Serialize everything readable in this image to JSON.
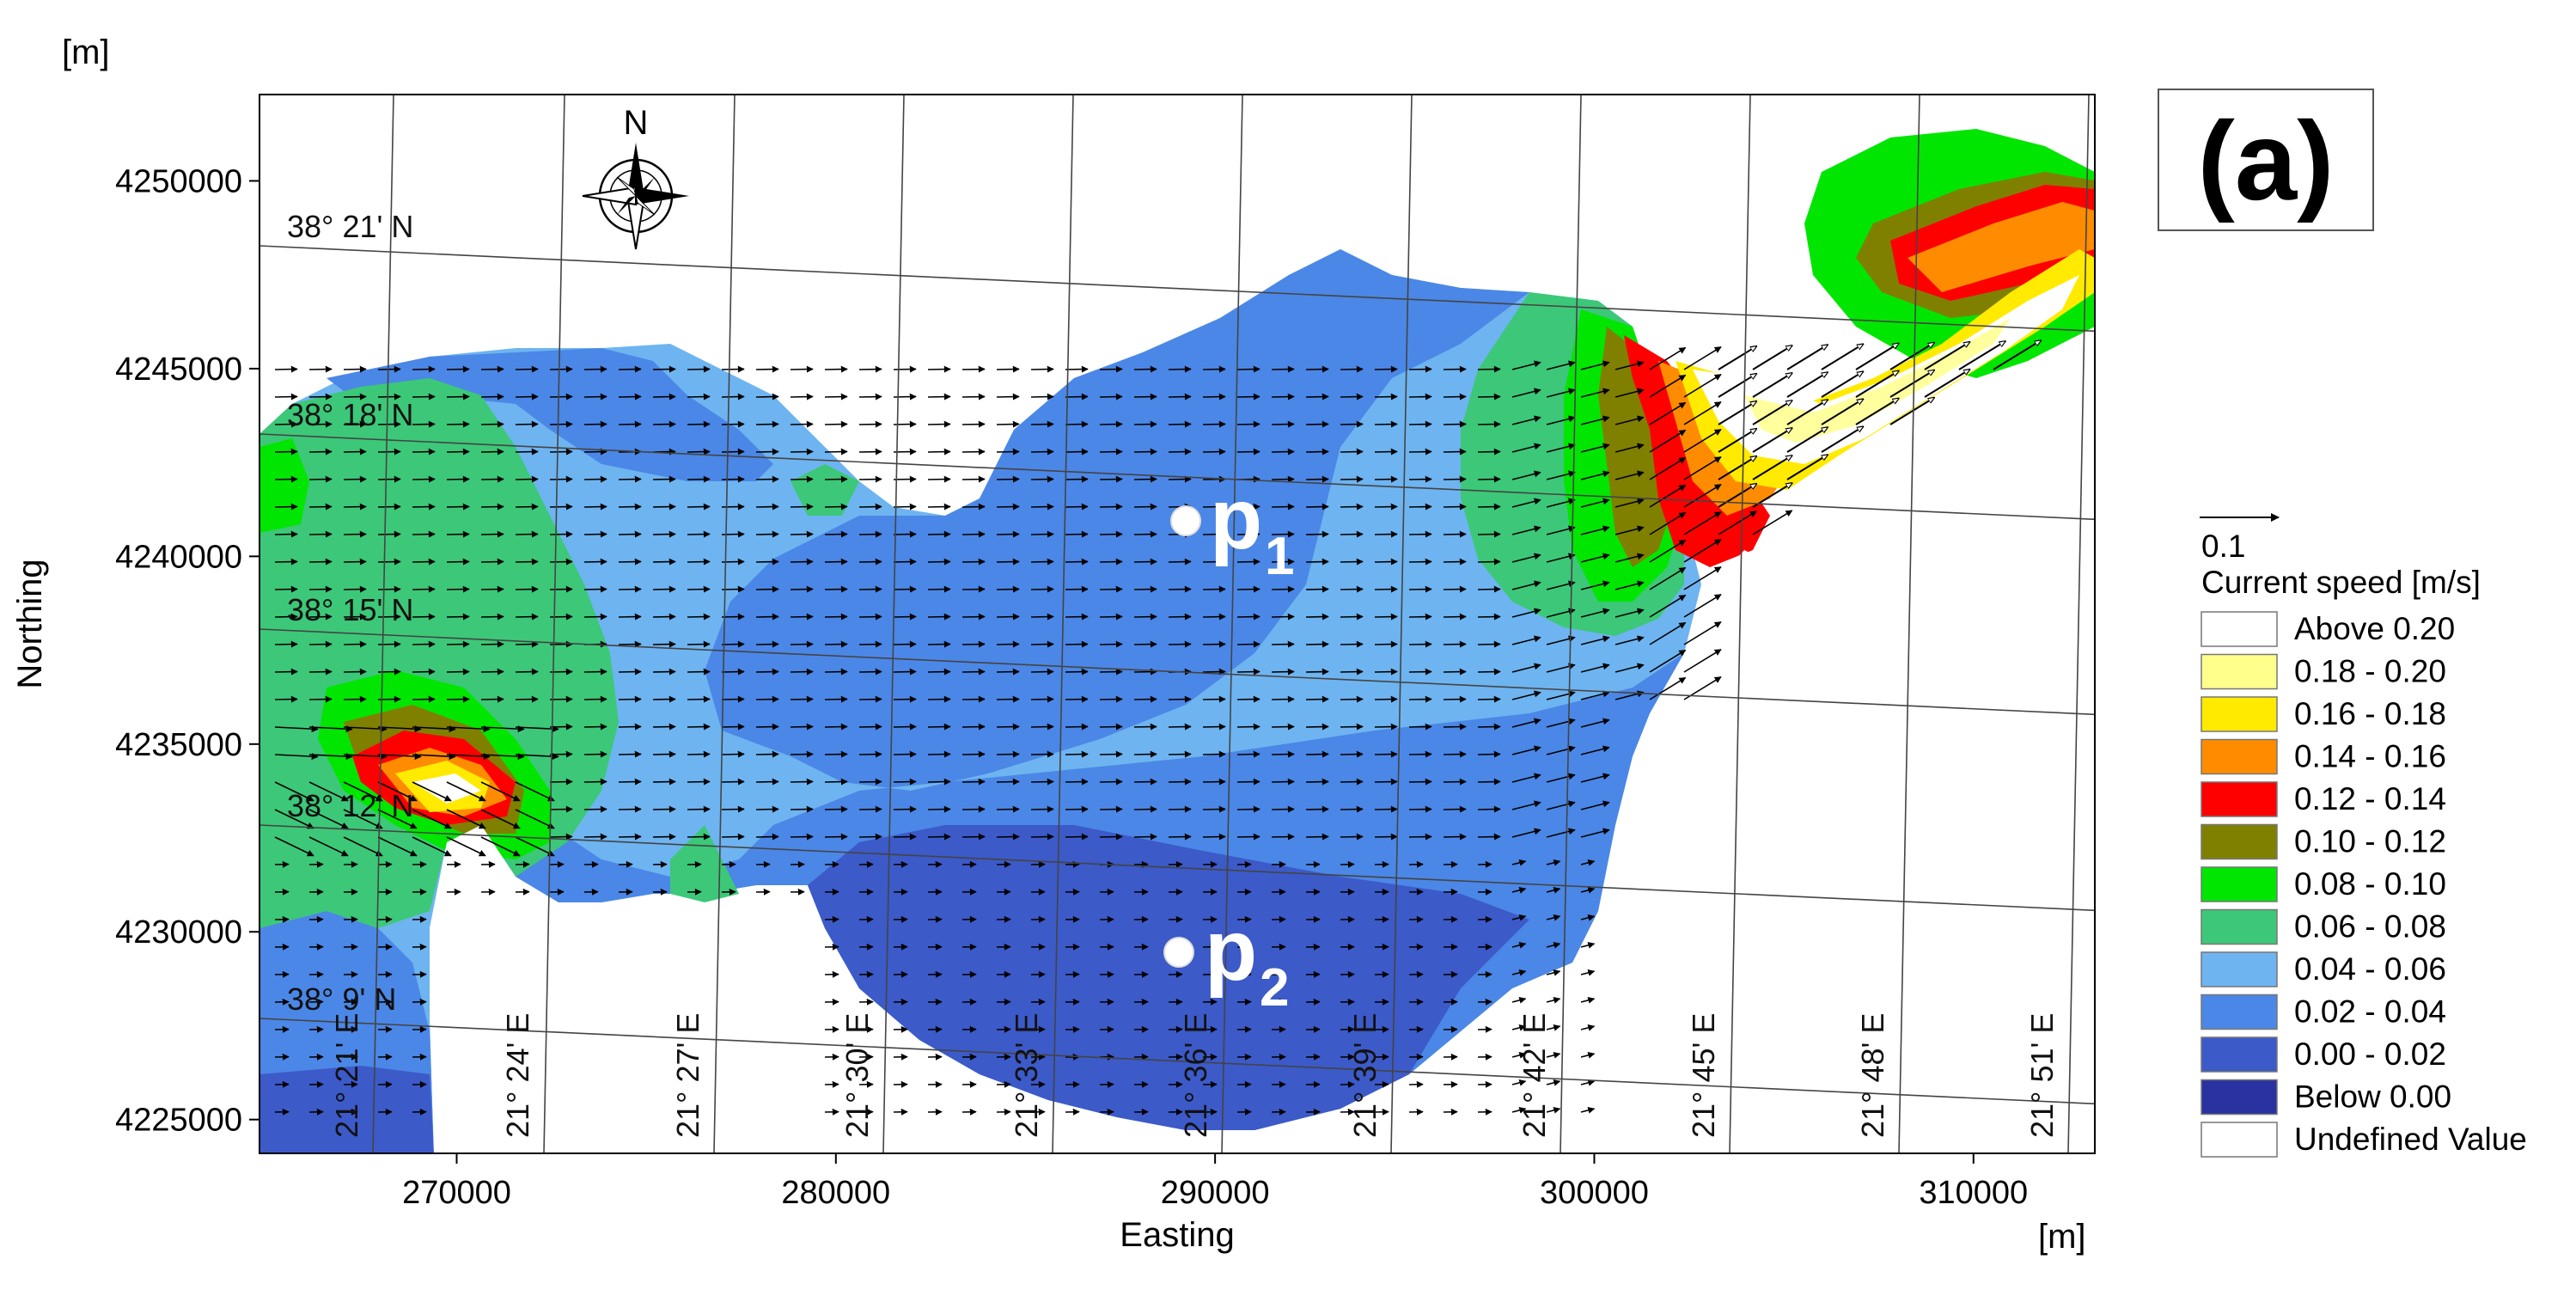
{
  "figure": {
    "panel_label": "(a)",
    "x_axis_title": "Easting",
    "y_axis_title": "Northing",
    "x_unit": "[m]",
    "y_unit": "[m]"
  },
  "axes": {
    "x_ticks": [
      {
        "value": 270000,
        "label": "270000"
      },
      {
        "value": 280000,
        "label": "280000"
      },
      {
        "value": 290000,
        "label": "290000"
      },
      {
        "value": 300000,
        "label": "300000"
      },
      {
        "value": 310000,
        "label": "310000"
      }
    ],
    "y_ticks": [
      {
        "value": 4225000,
        "label": "4225000"
      },
      {
        "value": 4230000,
        "label": "4230000"
      },
      {
        "value": 4235000,
        "label": "4235000"
      },
      {
        "value": 4240000,
        "label": "4240000"
      },
      {
        "value": 4245000,
        "label": "4245000"
      },
      {
        "value": 4250000,
        "label": "4250000"
      }
    ]
  },
  "graticule": {
    "latitudes": [
      "38° 21' N",
      "38° 18' N",
      "38° 15' N",
      "38° 12' N",
      "38° 9' N"
    ],
    "longitudes": [
      "21° 21' E",
      "21° 24' E",
      "21° 27' E",
      "21° 30' E",
      "21° 33' E",
      "21° 36' E",
      "21° 39' E",
      "21° 42' E",
      "21° 45' E",
      "21° 48' E",
      "21° 51' E"
    ]
  },
  "compass": {
    "label": "N",
    "icon": "north-arrow-compass-icon"
  },
  "points": [
    {
      "main": "p",
      "sub": "1"
    },
    {
      "main": "p",
      "sub": "2"
    }
  ],
  "legend": {
    "scale_arrow_value": "0.1",
    "title": "Current speed [m/s]",
    "entries": [
      {
        "label": "Above 0.20",
        "color": "#ffffff"
      },
      {
        "label": "0.18 - 0.20",
        "color": "#ffff8c"
      },
      {
        "label": "0.16 - 0.18",
        "color": "#ffea00"
      },
      {
        "label": "0.14 - 0.16",
        "color": "#ff8c00"
      },
      {
        "label": "0.12 - 0.14",
        "color": "#ff0000"
      },
      {
        "label": "0.10 - 0.12",
        "color": "#808000"
      },
      {
        "label": "0.08 - 0.10",
        "color": "#00e600"
      },
      {
        "label": "0.06 - 0.08",
        "color": "#3cc878"
      },
      {
        "label": "0.04 - 0.06",
        "color": "#6eb4f0"
      },
      {
        "label": "0.02 - 0.04",
        "color": "#4b87e6"
      },
      {
        "label": "0.00 - 0.02",
        "color": "#3c5ac8"
      },
      {
        "label": "Below 0.00",
        "color": "#2832a0"
      },
      {
        "label": "Undefined Value",
        "color": "#ffffff"
      }
    ]
  }
}
